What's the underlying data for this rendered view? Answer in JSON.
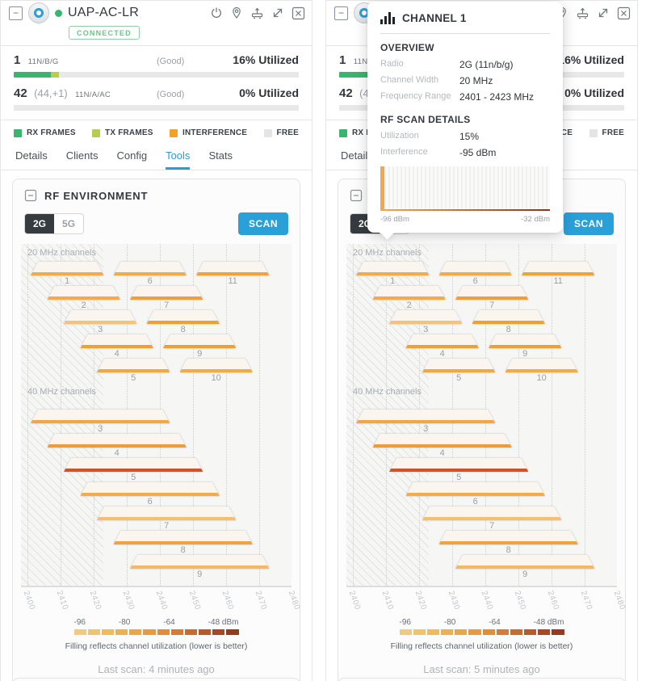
{
  "palette": {
    "blue": "#2aa0d9",
    "tab_blue": "#2f9cd0",
    "green": "#3ab56f",
    "light_green": "#b8cc52",
    "orange": "#f0a32b",
    "free_gray": "#e4e4e4",
    "hot_red": "#d0522b"
  },
  "legend": {
    "rx": "RX FRAMES",
    "tx": "TX FRAMES",
    "interference": "INTERFERENCE",
    "free": "FREE"
  },
  "rf": {
    "title": "RF ENVIRONMENT",
    "bands": [
      "2G",
      "5G"
    ],
    "active_band": "2G",
    "scan": "SCAN",
    "section_20": "20 MHz channels",
    "section_40": "40 MHz channels",
    "axis_mhz": [
      2400,
      2410,
      2420,
      2430,
      2440,
      2450,
      2460,
      2470,
      2480
    ],
    "hatch_to_mhz": 2423,
    "channels_20": [
      {
        "num": 1,
        "row": 0,
        "color": "#f2ab49"
      },
      {
        "num": 6,
        "row": 0,
        "color": "#f2ab49"
      },
      {
        "num": 11,
        "row": 0,
        "color": "#efa339"
      },
      {
        "num": 2,
        "row": 1,
        "color": "#f2ab49"
      },
      {
        "num": 7,
        "row": 1,
        "color": "#efa035"
      },
      {
        "num": 3,
        "row": 2,
        "color": "#f6c277"
      },
      {
        "num": 8,
        "row": 2,
        "color": "#efa035"
      },
      {
        "num": 4,
        "row": 3,
        "color": "#efa035"
      },
      {
        "num": 9,
        "row": 3,
        "color": "#ef9f33"
      },
      {
        "num": 5,
        "row": 4,
        "color": "#f0a843"
      },
      {
        "num": 10,
        "row": 4,
        "color": "#f2ab49"
      }
    ],
    "channels_40": [
      {
        "num": 3,
        "color": "#f1a747"
      },
      {
        "num": 4,
        "color": "#ef9c38"
      },
      {
        "num": 5,
        "color": "#d0522b"
      },
      {
        "num": 6,
        "color": "#f2ac4c"
      },
      {
        "num": 7,
        "color": "#f6bf70"
      },
      {
        "num": 8,
        "color": "#f0a440"
      },
      {
        "num": 9,
        "color": "#f5b860"
      }
    ],
    "gradient_labels": [
      "-96",
      "-80",
      "-64",
      "-48 dBm"
    ],
    "gradient_colors": [
      "#f4c97e",
      "#f3c26c",
      "#f2b95d",
      "#f0af52",
      "#eda549",
      "#e99a41",
      "#e18d3a",
      "#d57d33",
      "#c86c2d",
      "#b95a27",
      "#a84922",
      "#993a1e"
    ],
    "footnote": "Filling reflects channel utilization (lower is better)"
  },
  "panels": [
    {
      "device_name": "UAP-AC-LR",
      "status": "CONNECTED",
      "radios": [
        {
          "channel": "1",
          "extra": "",
          "standard": "11N/B/G",
          "quality": "(Good)",
          "utilized": "16% Utilized",
          "rx_pct": 13,
          "tx_pct": 3
        },
        {
          "channel": "42",
          "extra": "(44,+1)",
          "standard": "11N/A/AC",
          "quality": "(Good)",
          "utilized": "0% Utilized",
          "rx_pct": 0,
          "tx_pct": 0
        }
      ],
      "tabs": [
        "Details",
        "Clients",
        "Config",
        "Tools",
        "Stats"
      ],
      "active_tab": "Tools",
      "rf_last_scan": "Last scan: 4 minutes ago"
    },
    {
      "device_name": "UAP-AC-LR",
      "status": "CONNECTED",
      "radios": [
        {
          "channel": "1",
          "extra": "",
          "standard": "11N/B/G",
          "quality": "(Good)",
          "utilized": "16% Utilized",
          "rx_pct": 13,
          "tx_pct": 3
        },
        {
          "channel": "42",
          "extra": "(44,+1)",
          "standard": "11N/A/AC",
          "quality": "(Good)",
          "utilized": "0% Utilized",
          "rx_pct": 0,
          "tx_pct": 0
        }
      ],
      "tabs": [
        "Details",
        "Clients",
        "Config",
        "Tools",
        "Stats"
      ],
      "active_tab": "Tools",
      "rf_last_scan": "Last scan: 5 minutes ago"
    }
  ],
  "tooltip": {
    "title": "CHANNEL 1",
    "overview_title": "OVERVIEW",
    "rows_overview": [
      {
        "label": "Radio",
        "value": "2G (11n/b/g)"
      },
      {
        "label": "Channel Width",
        "value": "20 MHz"
      },
      {
        "label": "Frequency Range",
        "value": "2401 - 2423 MHz"
      }
    ],
    "scan_title": "RF SCAN DETAILS",
    "rows_scan": [
      {
        "label": "Utilization",
        "value": "15%"
      },
      {
        "label": "Interference",
        "value": "-95 dBm"
      }
    ],
    "hist_min": "-96 dBm",
    "hist_max": "-32 dBm"
  }
}
